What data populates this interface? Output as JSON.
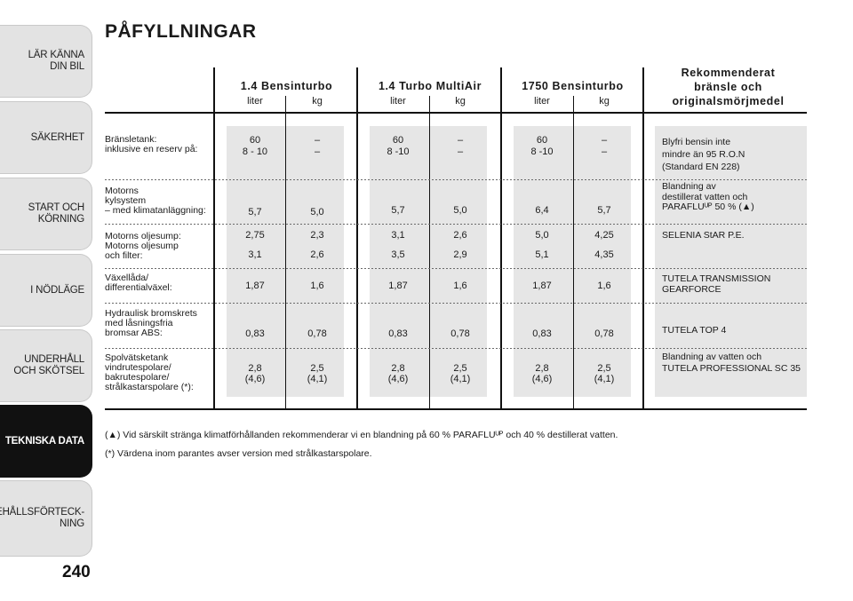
{
  "sidebar": {
    "tabs": [
      {
        "label": "LÄR KÄNNA\nDIN BIL",
        "active": false
      },
      {
        "label": "SÄKERHET",
        "active": false
      },
      {
        "label": "START OCH\nKÖRNING",
        "active": false
      },
      {
        "label": "I NÖDLÄGE",
        "active": false
      },
      {
        "label": "UNDERHÅLL\nOCH SKÖTSEL",
        "active": false
      },
      {
        "label": "TEKNISKA DATA",
        "active": true
      },
      {
        "label": "INNEHÅLLSFÖRTECK-\nNING",
        "active": false
      }
    ],
    "page_number": "240"
  },
  "title": "PÅFYLLNINGAR",
  "columns": [
    {
      "title": "1.4 Bensinturbo",
      "unit1": "liter",
      "unit2": "kg"
    },
    {
      "title": "1.4 Turbo MultiAir",
      "unit1": "liter",
      "unit2": "kg"
    },
    {
      "title": "1750 Bensinturbo",
      "unit1": "liter",
      "unit2": "kg"
    }
  ],
  "recommended_header": "Rekommenderat\nbränsle och\noriginalsmörjmedel",
  "rows": [
    {
      "label": "Bränsletank:\ninklusive en reserv på:",
      "values": [
        "60\n8 - 10",
        "–\n–",
        "60\n8 -10",
        "–\n–",
        "60\n8 -10",
        "–\n–"
      ],
      "recommended": "Blyfri bensin inte\nmindre än 95 R.O.N\n(Standard EN 228)"
    },
    {
      "label": "Motorns\nkylsystem\n– med klimatanläggning:",
      "values": [
        "5,7",
        "5,0",
        "5,7",
        "5,0",
        "6,4",
        "5,7"
      ],
      "recommended": "Blandning av\ndestillerat vatten och\nPARAFLUᵁᴾ 50 % (▲)"
    },
    {
      "label": "Motorns oljesump:\nMotorns oljesump\noch filter:",
      "values": [
        "2,75\n\n3,1",
        "2,3\n\n2,6",
        "3,1\n\n3,5",
        "2,6\n\n2,9",
        "5,0\n\n5,1",
        "4,25\n\n4,35"
      ],
      "recommended": "SELENIA StAR P.E."
    },
    {
      "label": "Växellåda/\ndifferentialväxel:",
      "values": [
        "1,87",
        "1,6",
        "1,87",
        "1,6",
        "1,87",
        "1,6"
      ],
      "recommended": "TUTELA TRANSMISSION\nGEARFORCE"
    },
    {
      "label": "Hydraulisk bromskrets\nmed låsningsfria\nbromsar ABS:",
      "values": [
        "0,83",
        "0,78",
        "0,83",
        "0,78",
        "0,83",
        "0,78"
      ],
      "recommended": "TUTELA TOP 4"
    },
    {
      "label": "Spolvätsketank\nvindrutespolare/\nbakrutespolare/\nstrålkastarspolare (*):",
      "values": [
        "2,8\n(4,6)",
        "2,5\n(4,1)",
        "2,8\n(4,6)",
        "2,5\n(4,1)",
        "2,8\n(4,6)",
        "2,5\n(4,1)"
      ],
      "recommended": "Blandning av vatten och\nTUTELA PROFESSIONAL SC 35"
    }
  ],
  "footnotes": [
    "(▲) Vid särskilt stränga klimatförhållanden rekommenderar vi en blandning på 60 % PARAFLUᵁᴾ och 40 % destillerat vatten.",
    "(*) Värdena inom parantes avser version med strålkastarspolare."
  ]
}
